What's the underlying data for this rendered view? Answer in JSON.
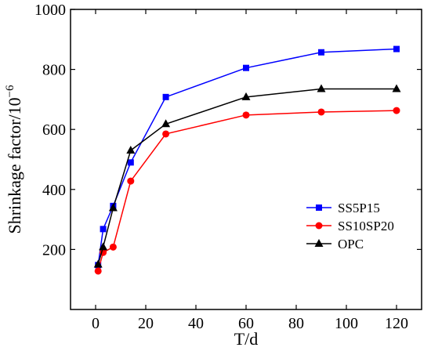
{
  "chart_data": {
    "type": "line",
    "title": "",
    "xlabel": "T/d",
    "ylabel": "Shrinkage factor/10",
    "ylabel_exponent": "−6",
    "xlim": [
      -10,
      130
    ],
    "ylim": [
      0,
      1000
    ],
    "xticks": [
      0,
      20,
      40,
      60,
      80,
      100,
      120
    ],
    "yticks": [
      200,
      400,
      600,
      800,
      1000
    ],
    "grid": false,
    "legend_position": "center-right",
    "x": [
      1,
      3,
      7,
      14,
      28,
      60,
      90,
      120
    ],
    "series": [
      {
        "name": "SS5P15",
        "color": "#0000ff",
        "marker": "square",
        "values": [
          148,
          268,
          345,
          490,
          708,
          805,
          857,
          868
        ]
      },
      {
        "name": "SS10SP20",
        "color": "#ff0000",
        "marker": "circle",
        "values": [
          128,
          190,
          208,
          428,
          585,
          648,
          658,
          663
        ]
      },
      {
        "name": "OPC",
        "color": "#000000",
        "marker": "triangle",
        "values": [
          150,
          208,
          338,
          530,
          618,
          708,
          735,
          735
        ]
      }
    ]
  }
}
